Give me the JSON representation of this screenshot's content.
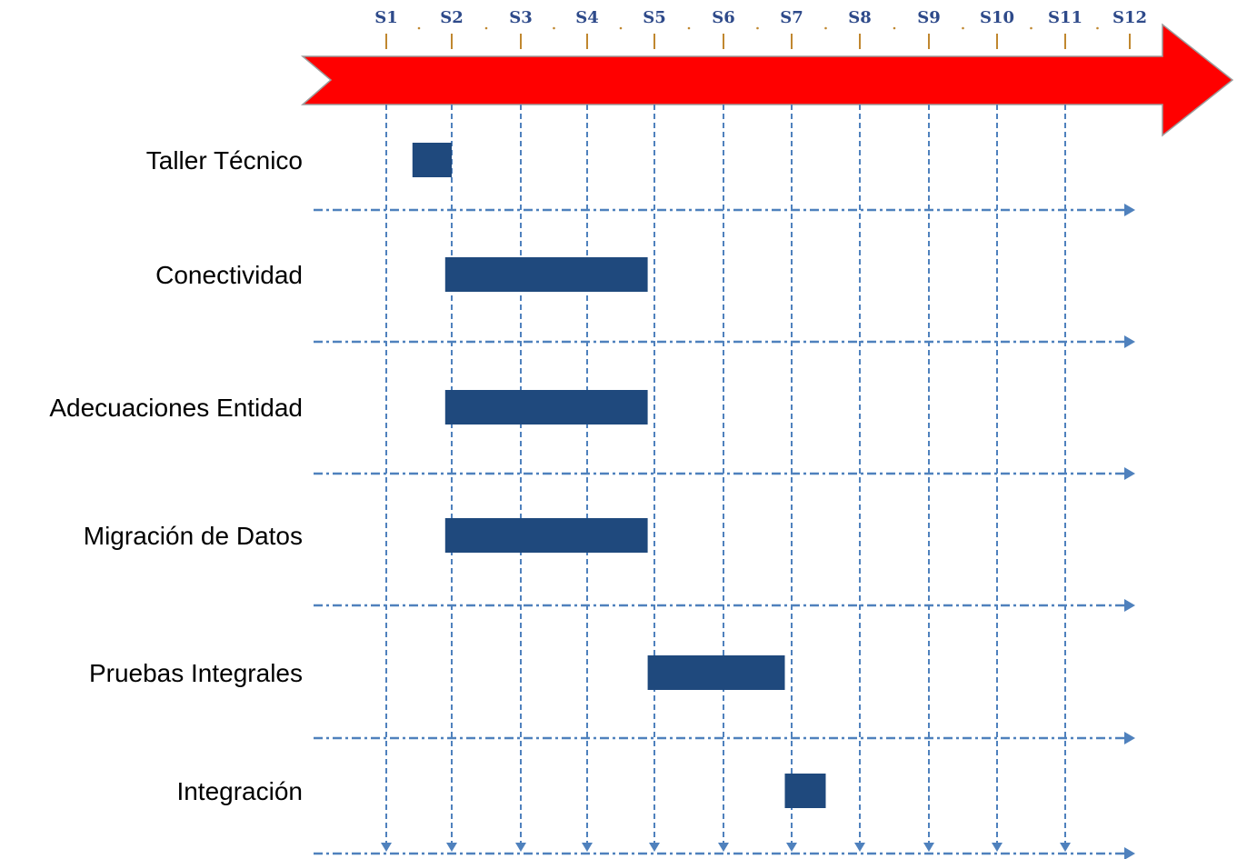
{
  "chart_data": {
    "type": "gantt",
    "weeks": [
      "S1",
      "S2",
      "S3",
      "S4",
      "S5",
      "S6",
      "S7",
      "S8",
      "S9",
      "S10",
      "S11",
      "S12"
    ],
    "tasks": [
      {
        "name": "Taller Técnico",
        "start": 0.4,
        "end": 1.0
      },
      {
        "name": "Conectividad",
        "start": 0.9,
        "end": 3.9
      },
      {
        "name": "Adecuaciones Entidad",
        "start": 0.9,
        "end": 3.9
      },
      {
        "name": "Migración de Datos",
        "start": 0.9,
        "end": 3.9
      },
      {
        "name": "Pruebas Integrales",
        "start": 3.9,
        "end": 5.9
      },
      {
        "name": "Integración",
        "start": 5.9,
        "end": 6.5
      }
    ],
    "colors": {
      "timeline_arrow": "#FF0000",
      "bar": "#1F497D",
      "grid": "#4F81BD",
      "tick": "#C0872F",
      "week_text": "#2E4A8A"
    }
  }
}
